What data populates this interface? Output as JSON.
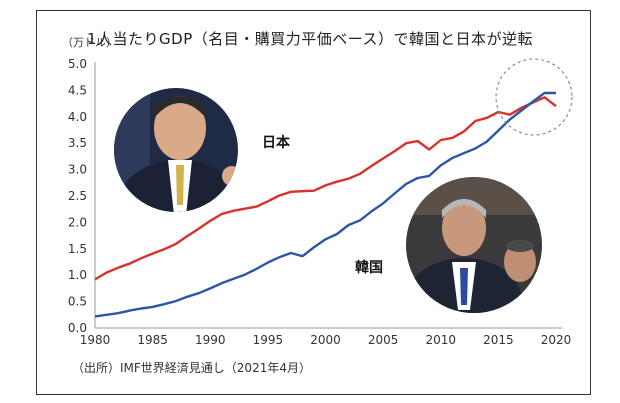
{
  "chart_data": {
    "type": "line",
    "title": "1人当たりGDP（名目・購買力平価ベース）で韓国と日本が逆転",
    "ylabel": "（万ドル）",
    "source": "（出所）IMF世界経済見通し（2021年4月）",
    "ylim": [
      0,
      5.0
    ],
    "xlim": [
      1980,
      2020
    ],
    "yticks": [
      "0.0",
      "0.5",
      "1.0",
      "1.5",
      "2.0",
      "2.5",
      "3.0",
      "3.5",
      "4.0",
      "4.5",
      "5.0"
    ],
    "xticks": [
      "1980",
      "1985",
      "1990",
      "1995",
      "2000",
      "2005",
      "2010",
      "2015",
      "2020"
    ],
    "series": [
      {
        "name": "日本",
        "color": "#d9312b",
        "x": [
          1980,
          1981,
          1982,
          1983,
          1984,
          1985,
          1986,
          1987,
          1988,
          1989,
          1990,
          1991,
          1992,
          1993,
          1994,
          1995,
          1996,
          1997,
          1998,
          1999,
          2000,
          2001,
          2002,
          2003,
          2004,
          2005,
          2006,
          2007,
          2008,
          2009,
          2010,
          2011,
          2012,
          2013,
          2014,
          2015,
          2016,
          2017,
          2018,
          2019,
          2020
        ],
        "values": [
          0.92,
          1.05,
          1.14,
          1.22,
          1.32,
          1.41,
          1.49,
          1.59,
          1.74,
          1.88,
          2.03,
          2.16,
          2.22,
          2.26,
          2.3,
          2.4,
          2.51,
          2.58,
          2.59,
          2.6,
          2.7,
          2.77,
          2.83,
          2.92,
          3.07,
          3.21,
          3.35,
          3.5,
          3.54,
          3.38,
          3.56,
          3.6,
          3.72,
          3.92,
          3.98,
          4.09,
          4.04,
          4.17,
          4.27,
          4.37,
          4.2
        ]
      },
      {
        "name": "韓国",
        "color": "#2e56a6",
        "x": [
          1980,
          1981,
          1982,
          1983,
          1984,
          1985,
          1986,
          1987,
          1988,
          1989,
          1990,
          1991,
          1992,
          1993,
          1994,
          1995,
          1996,
          1997,
          1998,
          1999,
          2000,
          2001,
          2002,
          2003,
          2004,
          2005,
          2006,
          2007,
          2008,
          2009,
          2010,
          2011,
          2012,
          2013,
          2014,
          2015,
          2016,
          2017,
          2018,
          2019,
          2020
        ],
        "values": [
          0.22,
          0.25,
          0.28,
          0.33,
          0.37,
          0.4,
          0.45,
          0.51,
          0.59,
          0.66,
          0.75,
          0.85,
          0.93,
          1.01,
          1.12,
          1.24,
          1.34,
          1.42,
          1.36,
          1.53,
          1.68,
          1.78,
          1.95,
          2.04,
          2.21,
          2.36,
          2.55,
          2.73,
          2.84,
          2.88,
          3.08,
          3.22,
          3.31,
          3.4,
          3.53,
          3.74,
          3.95,
          4.12,
          4.29,
          4.45,
          4.45
        ]
      }
    ],
    "grid": false,
    "annotation": "dashed circle around 2015–2020 crossover"
  }
}
